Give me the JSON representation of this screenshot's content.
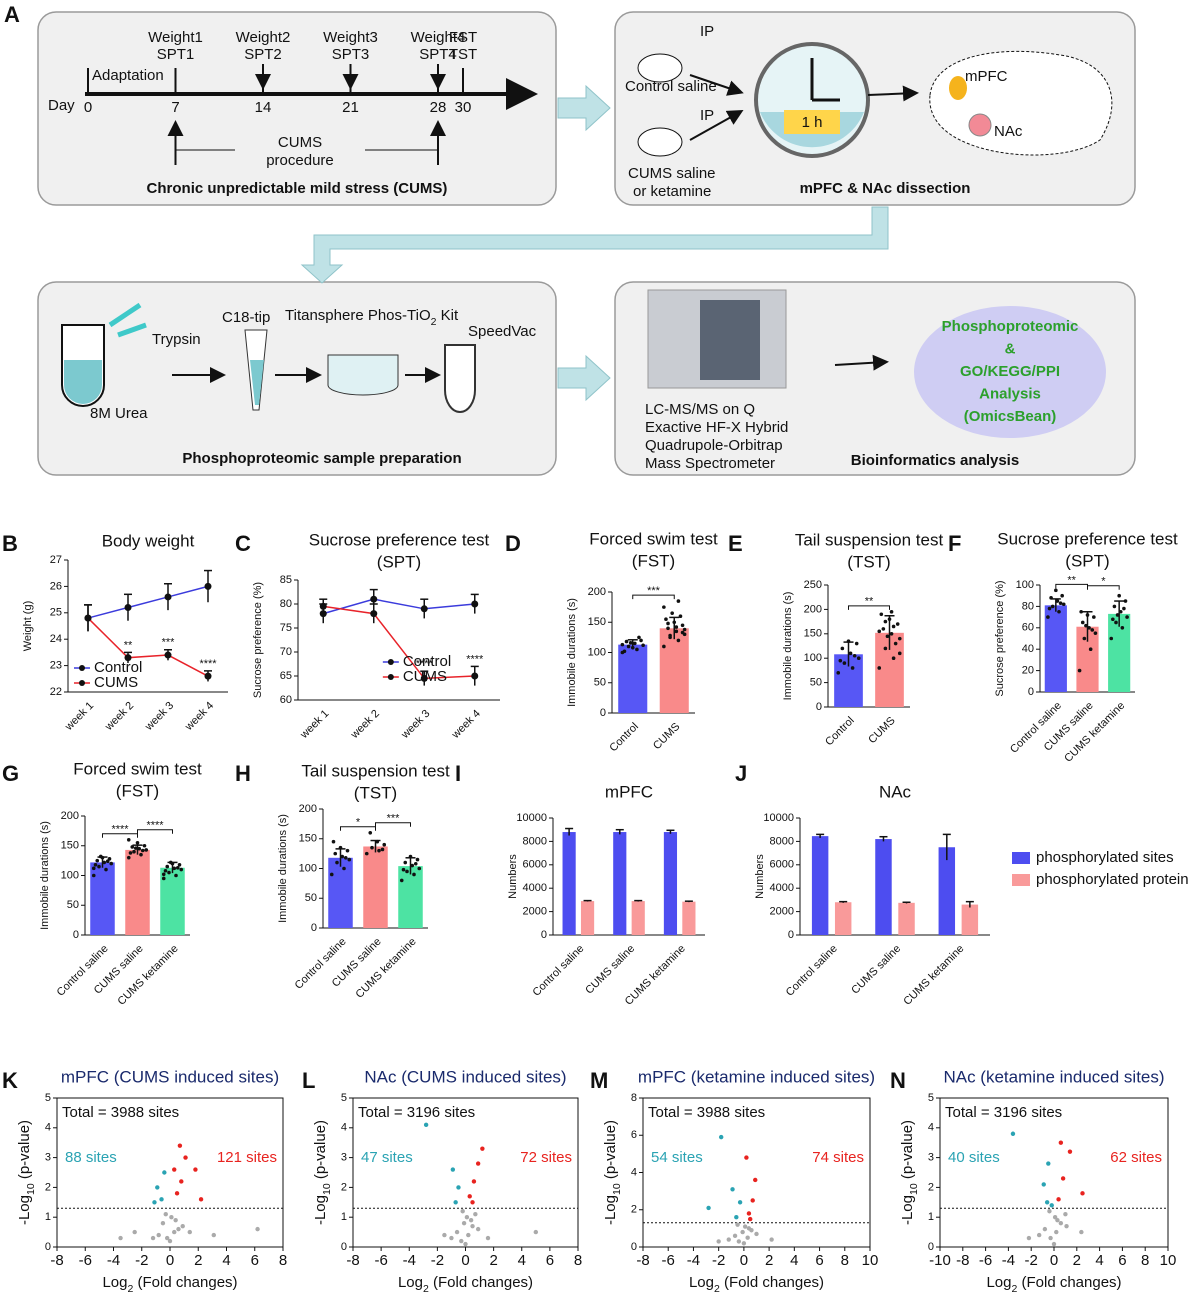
{
  "schematic": {
    "label": "A",
    "timeline": {
      "day_label": "Day",
      "adaptation": "Adaptation",
      "days": [
        0,
        7,
        14,
        21,
        28,
        30
      ],
      "top": [
        [
          "Weight1",
          "SPT1"
        ],
        [
          "Weight2",
          "SPT2"
        ],
        [
          "Weight3",
          "SPT3"
        ],
        [
          "Weight4",
          "SPT4"
        ],
        [
          "FST",
          "TST"
        ]
      ],
      "procedure": [
        "CUMS",
        "procedure"
      ],
      "title": "Chronic unpredictable mild stress (CUMS)"
    },
    "dissection": {
      "ip": "IP",
      "control": "Control saline",
      "cums": [
        "CUMS saline",
        "or ketamine"
      ],
      "time": "1 h",
      "mpfc": "mPFC",
      "nac": "NAc",
      "title": "mPFC & NAc dissection"
    },
    "prep": {
      "trypsin": "Trypsin",
      "urea": "8M Urea",
      "tip": "C18-tip",
      "kit": [
        "Titansphere Phos-TiO",
        "2",
        " Kit"
      ],
      "speedvac": "SpeedVac",
      "title": "Phosphoproteomic sample preparation"
    },
    "bio": {
      "instrument": [
        "LC-MS/MS on Q",
        "Exactive HF-X Hybrid",
        "Quadrupole-Orbitrap",
        "Mass Spectrometer"
      ],
      "analysis": [
        "Phosphoproteomic",
        "&",
        "GO/KEGG/PPI",
        "Analysis",
        "(OmicsBean)"
      ],
      "title": "Bioinformatics analysis"
    }
  },
  "chart_data": [
    {
      "type": "line",
      "label": "B",
      "title": [
        "Body weight"
      ],
      "ylabel": "Weight (g)",
      "categories": [
        "week 1",
        "week 2",
        "week 3",
        "week 4"
      ],
      "ylim": [
        22,
        27
      ],
      "yticks": [
        22,
        23,
        24,
        25,
        26,
        27
      ],
      "legend": "lower left",
      "series": [
        {
          "name": "Control",
          "color": "#3b3bdc",
          "values": [
            24.8,
            25.2,
            25.6,
            26.0
          ],
          "errors": [
            0.5,
            0.5,
            0.5,
            0.6
          ]
        },
        {
          "name": "CUMS",
          "color": "#e8232a",
          "values": [
            24.8,
            23.3,
            23.4,
            22.6
          ],
          "errors": [
            0.5,
            0.2,
            0.2,
            0.2
          ],
          "labels": [
            null,
            "**",
            "***",
            "****"
          ]
        }
      ]
    },
    {
      "type": "line",
      "label": "C",
      "title": [
        "Sucrose preference test",
        "(SPT)"
      ],
      "ylabel": "Sucrose preference (%)",
      "categories": [
        "week 1",
        "week 2",
        "week 3",
        "week 4"
      ],
      "ylim": [
        60,
        85
      ],
      "yticks": [
        60,
        65,
        70,
        75,
        80,
        85
      ],
      "legend": "center right",
      "series": [
        {
          "name": "Control",
          "color": "#3b3bdc",
          "values": [
            78,
            81,
            79,
            80
          ],
          "errors": [
            2,
            2,
            2,
            2
          ]
        },
        {
          "name": "CUMS",
          "color": "#e8232a",
          "values": [
            79.5,
            78,
            64.5,
            65
          ],
          "errors": [
            1.5,
            2,
            1.5,
            2
          ],
          "labels": [
            null,
            null,
            "****",
            "****"
          ]
        }
      ]
    },
    {
      "type": "bar",
      "label": "D",
      "title": [
        "Forced swim test",
        "(FST)"
      ],
      "ylabel": "Immobile durations (s)",
      "categories": [
        "Control",
        "CUMS"
      ],
      "values": [
        113,
        140
      ],
      "errors": [
        8,
        18
      ],
      "colors": [
        "#5757f5",
        "#f98a8a"
      ],
      "ylim": [
        0,
        200
      ],
      "yticks": [
        0,
        50,
        100,
        150,
        200
      ],
      "points": [
        [
          100,
          105,
          110,
          112,
          115,
          118,
          120,
          108,
          102,
          125,
          116,
          113
        ],
        [
          110,
          120,
          125,
          130,
          135,
          140,
          145,
          150,
          155,
          160,
          165,
          175,
          185,
          128,
          138,
          142,
          148,
          133
        ]
      ],
      "significance": [
        {
          "from": "Control",
          "to": "CUMS",
          "label": "***"
        }
      ]
    },
    {
      "type": "bar",
      "label": "E",
      "title": [
        "Tail suspension test",
        "(TST)"
      ],
      "ylabel": "Immobile durations (s)",
      "categories": [
        "Control",
        "CUMS"
      ],
      "values": [
        108,
        152
      ],
      "errors": [
        25,
        35
      ],
      "colors": [
        "#5757f5",
        "#f98a8a"
      ],
      "ylim": [
        0,
        250
      ],
      "yticks": [
        0,
        50,
        100,
        150,
        200,
        250
      ],
      "points": [
        [
          70,
          80,
          90,
          100,
          110,
          120,
          130,
          135,
          95,
          105
        ],
        [
          80,
          100,
          120,
          140,
          150,
          160,
          170,
          180,
          190,
          130,
          145,
          155,
          165,
          175,
          110,
          195
        ]
      ],
      "significance": [
        {
          "from": "Control",
          "to": "CUMS",
          "label": "**"
        }
      ]
    },
    {
      "type": "bar",
      "label": "F",
      "title": [
        "Sucrose preference test",
        "(SPT)"
      ],
      "ylabel": "Sucrose preference (%)",
      "categories": [
        "Control saline",
        "CUMS saline",
        "CUMS ketamine"
      ],
      "values": [
        81,
        61,
        73
      ],
      "errors": [
        6,
        14,
        12
      ],
      "colors": [
        "#5757f5",
        "#f98a8a",
        "#4de3a3"
      ],
      "ylim": [
        0,
        100
      ],
      "yticks": [
        0,
        20,
        40,
        60,
        80,
        100
      ],
      "points": [
        [
          70,
          75,
          80,
          82,
          85,
          88,
          90,
          95,
          78,
          83
        ],
        [
          20,
          40,
          50,
          55,
          60,
          65,
          70,
          72,
          75,
          58,
          62
        ],
        [
          50,
          60,
          65,
          70,
          75,
          80,
          85,
          90,
          68,
          78,
          72
        ]
      ],
      "significance": [
        {
          "from": "Control saline",
          "to": "CUMS saline",
          "label": "**"
        },
        {
          "from": "CUMS saline",
          "to": "CUMS ketamine",
          "label": "*"
        }
      ]
    },
    {
      "type": "bar",
      "label": "G",
      "title": [
        "Forced swim test",
        "(FST)"
      ],
      "ylabel": "Immobile durations (s)",
      "categories": [
        "Control saline",
        "CUMS saline",
        "CUMS ketamine"
      ],
      "values": [
        122,
        143,
        113
      ],
      "errors": [
        9,
        8,
        9
      ],
      "colors": [
        "#5757f5",
        "#f98a8a",
        "#4de3a3"
      ],
      "ylim": [
        0,
        200
      ],
      "yticks": [
        0,
        50,
        100,
        150,
        200
      ],
      "points": [
        [
          100,
          110,
          115,
          120,
          122,
          125,
          128,
          130,
          118,
          124,
          132,
          112
        ],
        [
          130,
          135,
          140,
          143,
          145,
          148,
          150,
          155,
          138,
          142,
          146,
          160
        ],
        [
          95,
          100,
          105,
          110,
          112,
          115,
          118,
          120,
          108,
          113,
          122,
          102
        ]
      ],
      "significance": [
        {
          "from": "Control saline",
          "to": "CUMS saline",
          "label": "****"
        },
        {
          "from": "CUMS saline",
          "to": "CUMS ketamine",
          "label": "****"
        }
      ]
    },
    {
      "type": "bar",
      "label": "H",
      "title": [
        "Tail suspension test",
        "(TST)"
      ],
      "ylabel": "Immobile durations (s)",
      "categories": [
        "Control saline",
        "CUMS saline",
        "CUMS ketamine"
      ],
      "values": [
        118,
        137,
        104
      ],
      "errors": [
        15,
        10,
        14
      ],
      "colors": [
        "#5757f5",
        "#f98a8a",
        "#4de3a3"
      ],
      "ylim": [
        0,
        200
      ],
      "yticks": [
        0,
        50,
        100,
        150,
        200
      ],
      "points": [
        [
          90,
          100,
          110,
          115,
          120,
          125,
          130,
          135,
          145,
          118
        ],
        [
          125,
          130,
          135,
          140,
          145,
          160,
          132
        ],
        [
          80,
          90,
          95,
          100,
          105,
          110,
          115,
          120,
          98,
          108
        ]
      ],
      "significance": [
        {
          "from": "Control saline",
          "to": "CUMS saline",
          "label": "*"
        },
        {
          "from": "CUMS saline",
          "to": "CUMS ketamine",
          "label": "***"
        }
      ]
    },
    {
      "type": "grouped_bar",
      "label": "I",
      "title": [
        "mPFC"
      ],
      "ylabel": "Numbers",
      "categories": [
        "Control saline",
        "CUMS saline",
        "CUMS ketamine"
      ],
      "ylim": [
        0,
        10000
      ],
      "yticks": [
        0,
        2000,
        4000,
        6000,
        8000,
        10000
      ],
      "series": [
        {
          "color": "#4d4df0",
          "values": [
            8800,
            8800,
            8800
          ],
          "errors": [
            300,
            200,
            150
          ]
        },
        {
          "color": "#f99a9a",
          "values": [
            2900,
            2900,
            2850
          ],
          "errors": [
            40,
            40,
            40
          ]
        }
      ]
    },
    {
      "type": "grouped_bar",
      "label": "J",
      "title": [
        "NAc"
      ],
      "ylabel": "Numbers",
      "categories": [
        "Control saline",
        "CUMS saline",
        "CUMS ketamine"
      ],
      "ylim": [
        0,
        10000
      ],
      "yticks": [
        0,
        2000,
        4000,
        6000,
        8000,
        10000
      ],
      "series": [
        {
          "name": "phosphorylated sites",
          "color": "#4d4df0",
          "values": [
            8450,
            8200,
            7500
          ],
          "errors": [
            150,
            200,
            1100
          ]
        },
        {
          "name": "phosphorylated proteins",
          "color": "#f99a9a",
          "values": [
            2800,
            2750,
            2600
          ],
          "errors": [
            50,
            50,
            250
          ]
        }
      ]
    },
    {
      "type": "scatter",
      "label": "K",
      "title": [
        "mPFC (CUMS induced sites)"
      ],
      "xlabel": [
        "Log",
        "2",
        " (Fold changes)"
      ],
      "ylabel": [
        "-Log",
        "10",
        " (p-value)"
      ],
      "xlim": [
        -8,
        8
      ],
      "xticks": [
        -8,
        -6,
        -4,
        -2,
        0,
        2,
        4,
        6,
        8
      ],
      "ylim": [
        0,
        5
      ],
      "yticks": [
        0,
        1,
        2,
        3,
        4,
        5
      ],
      "threshold": 1.3,
      "colors": {
        "down": "#2aa3b3",
        "up": "#e8231f",
        "ns": "#aaaaaa"
      },
      "total": "Total = 3988 sites",
      "down_label": "88 sites",
      "up_label": "121 sites",
      "x": [
        -0.2,
        0.3,
        -0.5,
        0.6,
        0.1,
        -0.8,
        0.9,
        -1.2,
        1.4,
        0.0,
        -0.3,
        0.4,
        -2.5,
        3.1,
        -0.6,
        -0.9,
        -0.4,
        -1.1,
        0.5,
        0.8,
        1.1,
        0.7,
        0.3,
        2.2,
        6.2,
        -3.5,
        1.8
      ],
      "y": [
        0.3,
        0.5,
        0.8,
        0.6,
        1.0,
        0.4,
        0.7,
        0.3,
        0.5,
        0.2,
        1.1,
        0.9,
        0.5,
        0.4,
        1.6,
        2.0,
        2.5,
        1.5,
        1.8,
        2.2,
        3.0,
        3.4,
        2.6,
        1.6,
        0.6,
        0.3,
        2.6
      ]
    },
    {
      "type": "scatter",
      "label": "L",
      "title": [
        "NAc (CUMS induced sites)"
      ],
      "xlabel": [
        "Log",
        "2",
        " (Fold changes)"
      ],
      "ylabel": [
        "-Log",
        "10",
        " (p-value)"
      ],
      "xlim": [
        -8,
        8
      ],
      "xticks": [
        -8,
        -6,
        -4,
        -2,
        0,
        2,
        4,
        6,
        8
      ],
      "ylim": [
        0,
        5
      ],
      "yticks": [
        0,
        1,
        2,
        3,
        4,
        5
      ],
      "threshold": 1.3,
      "colors": {
        "down": "#2aa3b3",
        "up": "#e8231f",
        "ns": "#aaaaaa"
      },
      "total": "Total = 3196 sites",
      "down_label": "47 sites",
      "up_label": "72 sites",
      "x": [
        -0.3,
        0.2,
        0.5,
        -0.6,
        0.1,
        -1.0,
        0.9,
        -1.5,
        1.6,
        5.0,
        -0.2,
        0.4,
        -0.7,
        -0.5,
        -0.9,
        0.3,
        0.6,
        0.9,
        1.2,
        0.5,
        -2.8,
        0.0,
        -0.1,
        0.7
      ],
      "y": [
        0.2,
        0.4,
        0.7,
        0.5,
        1.0,
        0.3,
        0.6,
        0.4,
        0.3,
        0.5,
        1.2,
        0.9,
        1.5,
        2.0,
        2.6,
        1.7,
        2.2,
        2.8,
        3.3,
        1.5,
        4.1,
        0.1,
        0.8,
        1.1
      ]
    },
    {
      "type": "scatter",
      "label": "M",
      "title": [
        "mPFC (ketamine induced sites)"
      ],
      "xlabel": [
        "Log",
        "2",
        " (Fold changes)"
      ],
      "ylabel": [
        "-Log",
        "10",
        " (p-value)"
      ],
      "xlim": [
        -8,
        10
      ],
      "xticks": [
        -8,
        -6,
        -4,
        -2,
        0,
        2,
        4,
        6,
        8,
        10
      ],
      "ylim": [
        0,
        8
      ],
      "yticks": [
        0,
        2,
        4,
        6,
        8
      ],
      "threshold": 1.3,
      "colors": {
        "down": "#2aa3b3",
        "up": "#e8231f",
        "ns": "#aaaaaa"
      },
      "total": "Total = 3988 sites",
      "down_label": "54 sites",
      "up_label": "74 sites",
      "x": [
        -0.4,
        0.3,
        0.6,
        -0.7,
        0.1,
        -1.2,
        1.0,
        -2.0,
        2.2,
        -0.5,
        0.4,
        -0.6,
        -0.3,
        -0.9,
        0.4,
        0.7,
        0.9,
        0.5,
        -1.8,
        -2.8,
        0.2,
        0.0,
        -0.1
      ],
      "y": [
        0.3,
        0.5,
        0.9,
        0.6,
        1.1,
        0.4,
        0.7,
        0.3,
        0.4,
        1.2,
        1.0,
        1.6,
        2.4,
        3.1,
        1.8,
        2.5,
        3.6,
        1.5,
        5.9,
        2.1,
        4.8,
        0.2,
        0.8
      ]
    },
    {
      "type": "scatter",
      "label": "N",
      "title": [
        "NAc (ketamine induced sites)"
      ],
      "xlabel": [
        "Log",
        "2",
        " (Fold changes)"
      ],
      "ylabel": [
        "-Log",
        "10",
        " (p-value)"
      ],
      "xlim": [
        -10,
        10
      ],
      "xticks": [
        -10,
        -8,
        -6,
        -4,
        -2,
        0,
        2,
        4,
        6,
        8,
        10
      ],
      "ylim": [
        0,
        5
      ],
      "yticks": [
        0,
        1,
        2,
        3,
        4,
        5
      ],
      "threshold": 1.3,
      "colors": {
        "down": "#2aa3b3",
        "up": "#e8231f",
        "ns": "#aaaaaa"
      },
      "total": "Total = 3196 sites",
      "down_label": "40 sites",
      "up_label": "62 sites",
      "x": [
        -0.3,
        0.2,
        0.6,
        -0.8,
        0.1,
        -1.3,
        1.1,
        -2.2,
        2.4,
        -0.4,
        0.3,
        -0.6,
        -0.9,
        -0.5,
        0.4,
        0.8,
        1.4,
        2.5,
        0.6,
        -3.6,
        -0.2,
        0.0,
        1.0
      ],
      "y": [
        0.3,
        0.5,
        0.8,
        0.6,
        1.0,
        0.4,
        0.7,
        0.3,
        0.5,
        1.2,
        0.9,
        1.5,
        2.1,
        2.8,
        1.6,
        2.3,
        3.2,
        1.8,
        3.5,
        3.8,
        1.4,
        0.1,
        1.1
      ]
    }
  ]
}
